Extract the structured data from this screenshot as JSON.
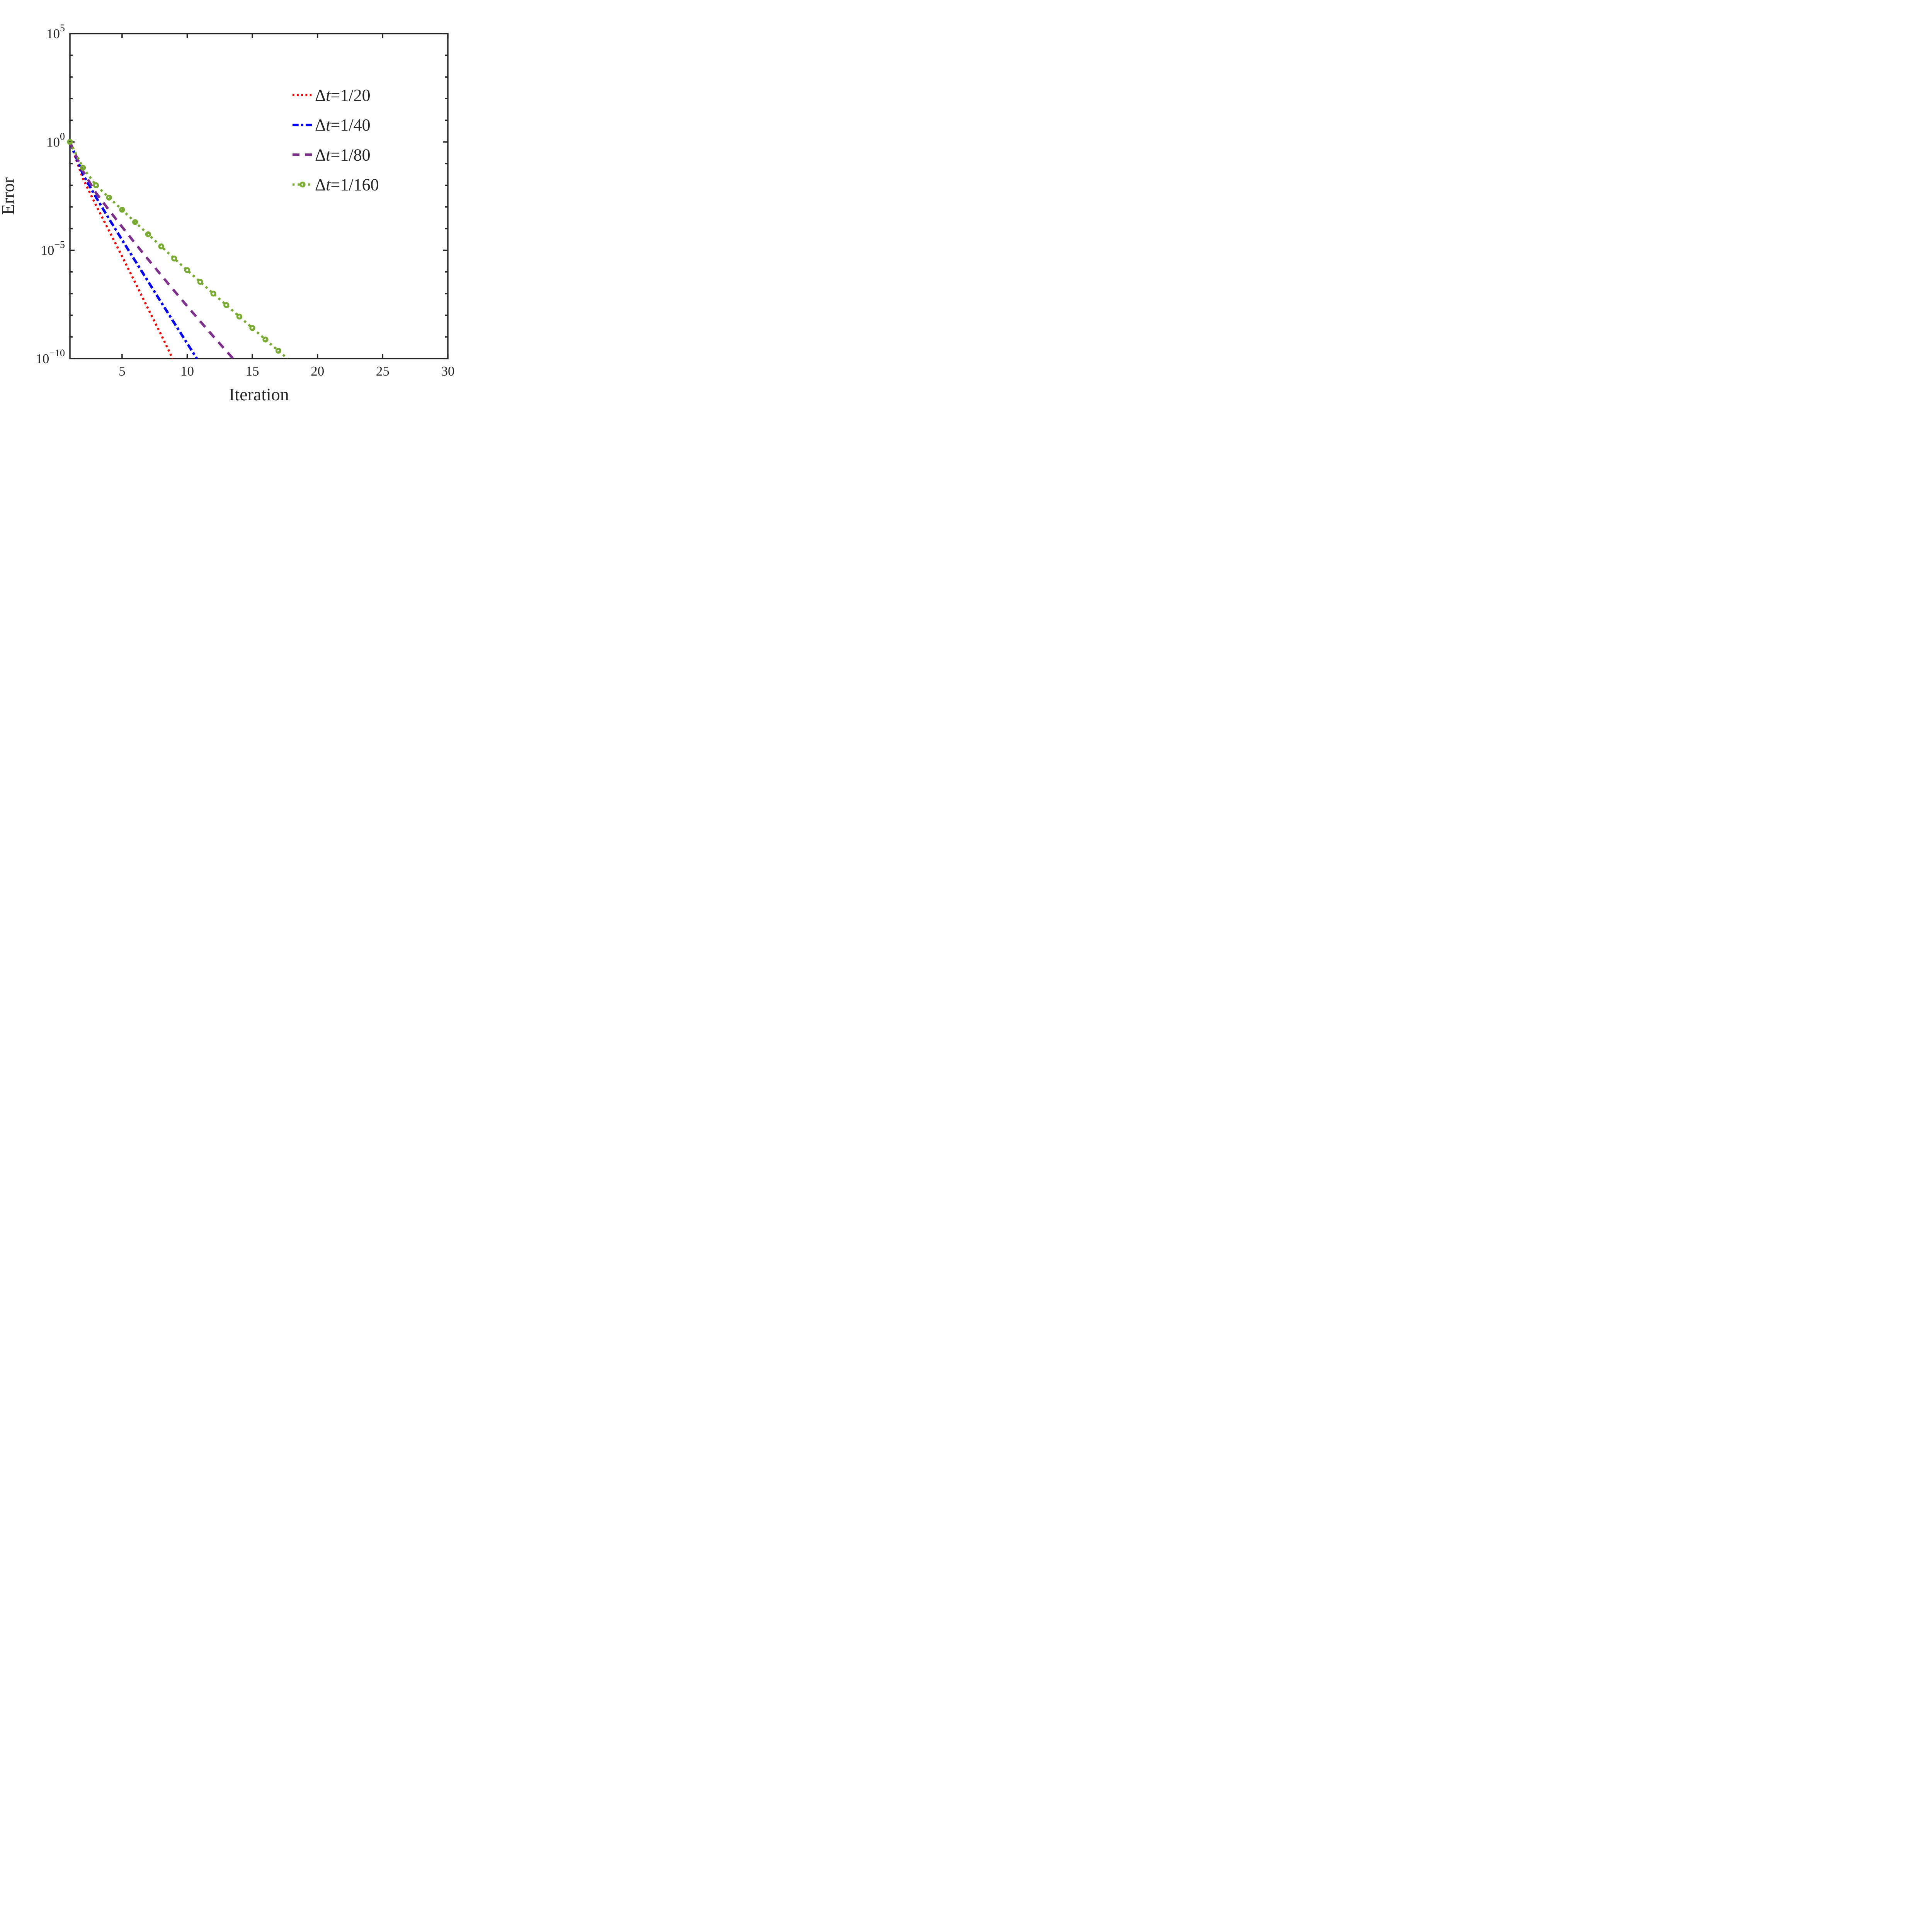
{
  "figure": {
    "background": "#ffffff",
    "axis_color": "#262626"
  },
  "chart_data": {
    "type": "line",
    "title": "",
    "xlabel": "Iteration",
    "ylabel": "Error",
    "grid": false,
    "legend_position": "upper-right-inside",
    "x_axis": {
      "lim": [
        1,
        30
      ],
      "major_ticks": [
        5,
        10,
        15,
        20,
        25,
        30
      ]
    },
    "y_axis": {
      "scale": "log10",
      "lim_log10": [
        -10,
        5
      ],
      "major_ticks": [
        {
          "base": "10",
          "exp": "5",
          "log10": 5
        },
        {
          "base": "10",
          "exp": "0",
          "log10": 0
        },
        {
          "base": "10",
          "exp": "-5",
          "log10": -5
        },
        {
          "base": "10",
          "exp": "-10",
          "log10": -10
        }
      ],
      "minor_ticks_log10": [
        4,
        3,
        2,
        1,
        -1,
        -2,
        -3,
        -4,
        -6,
        -7,
        -8,
        -9
      ]
    },
    "series": [
      {
        "name": "Δt=1/20",
        "color": "#ff0000",
        "style": "dotted",
        "dash": [
          5.2,
          7.2
        ],
        "width": 5.6,
        "marker": "none",
        "x_start": 1,
        "x_step": 1,
        "y_log10": [
          0,
          -1.7,
          -2.92,
          -4.1,
          -5.28,
          -6.48,
          -7.7,
          -8.9,
          -10.15
        ]
      },
      {
        "name": "Δt=1/40",
        "color": "#0000ff",
        "style": "dash-dot",
        "dash": [
          17.5,
          7,
          6.5,
          7
        ],
        "width": 6.5,
        "marker": "none",
        "x_start": 1,
        "x_step": 1,
        "y_log10": [
          0,
          -1.5,
          -2.55,
          -3.55,
          -4.52,
          -5.48,
          -6.44,
          -7.4,
          -8.35,
          -9.3,
          -10.25
        ]
      },
      {
        "name": "Δt=1/80",
        "color": "#7e2f8e",
        "style": "dashed",
        "dash": [
          20,
          16
        ],
        "width": 6.5,
        "marker": "none",
        "x_start": 1,
        "x_step": 1,
        "y_log10": [
          0,
          -1.35,
          -2.35,
          -3.15,
          -3.92,
          -4.68,
          -5.42,
          -6.15,
          -6.87,
          -7.58,
          -8.28,
          -8.97,
          -9.65,
          -10.32
        ]
      },
      {
        "name": "Δt=1/160",
        "color": "#77ac30",
        "style": "dotted-circle",
        "dash": [
          6,
          8.8
        ],
        "width": 6,
        "marker": "circle",
        "marker_r": 5.2,
        "marker_stroke": 4.8,
        "x_start": 1,
        "x_step": 1,
        "y_log10": [
          0,
          -1.19,
          -2.0,
          -2.57,
          -3.13,
          -3.7,
          -4.26,
          -4.82,
          -5.38,
          -5.92,
          -6.46,
          -7.0,
          -7.53,
          -8.06,
          -8.59,
          -9.12,
          -9.64,
          -10.16
        ]
      }
    ]
  }
}
